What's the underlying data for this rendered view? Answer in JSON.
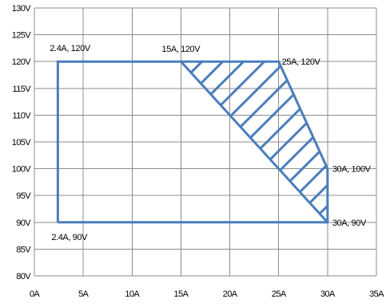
{
  "chart_data": {
    "type": "line",
    "title": "",
    "xlabel": "",
    "ylabel": "",
    "xlim": [
      0,
      35
    ],
    "ylim": [
      80,
      130
    ],
    "x_ticks": [
      0,
      5,
      10,
      15,
      20,
      25,
      30,
      35
    ],
    "x_tick_labels": [
      "0A",
      "5A",
      "10A",
      "15A",
      "20A",
      "25A",
      "30A",
      "35A"
    ],
    "y_ticks": [
      80,
      85,
      90,
      95,
      100,
      105,
      110,
      115,
      120,
      125,
      130
    ],
    "y_tick_labels": [
      "80V",
      "85V",
      "90V",
      "95V",
      "100V",
      "105V",
      "110V",
      "115V",
      "120V",
      "125V",
      "130V"
    ],
    "grid": true,
    "series": [
      {
        "color": "#4a7ebb",
        "points": [
          [
            2.4,
            90
          ],
          [
            2.4,
            120
          ],
          [
            25,
            120
          ],
          [
            30,
            100
          ],
          [
            30,
            90
          ],
          [
            2.4,
            90
          ]
        ]
      },
      {
        "color": "#4a7ebb",
        "points": [
          [
            15,
            120
          ],
          [
            30,
            90
          ]
        ]
      }
    ],
    "hatched_region": {
      "color": "#4a7ebb",
      "polygon": [
        [
          15,
          120
        ],
        [
          25,
          120
        ],
        [
          30,
          100
        ],
        [
          30,
          90
        ]
      ]
    },
    "annotations": [
      {
        "text": "2.4A, 120V",
        "x": 2.4,
        "y": 120
      },
      {
        "text": "15A, 120V",
        "x": 15,
        "y": 120
      },
      {
        "text": "25A, 120V",
        "x": 25,
        "y": 120
      },
      {
        "text": "30A, 100V",
        "x": 30,
        "y": 100
      },
      {
        "text": "30A, 90V",
        "x": 30,
        "y": 90
      },
      {
        "text": "2.4A, 90V",
        "x": 2.4,
        "y": 90
      }
    ]
  }
}
